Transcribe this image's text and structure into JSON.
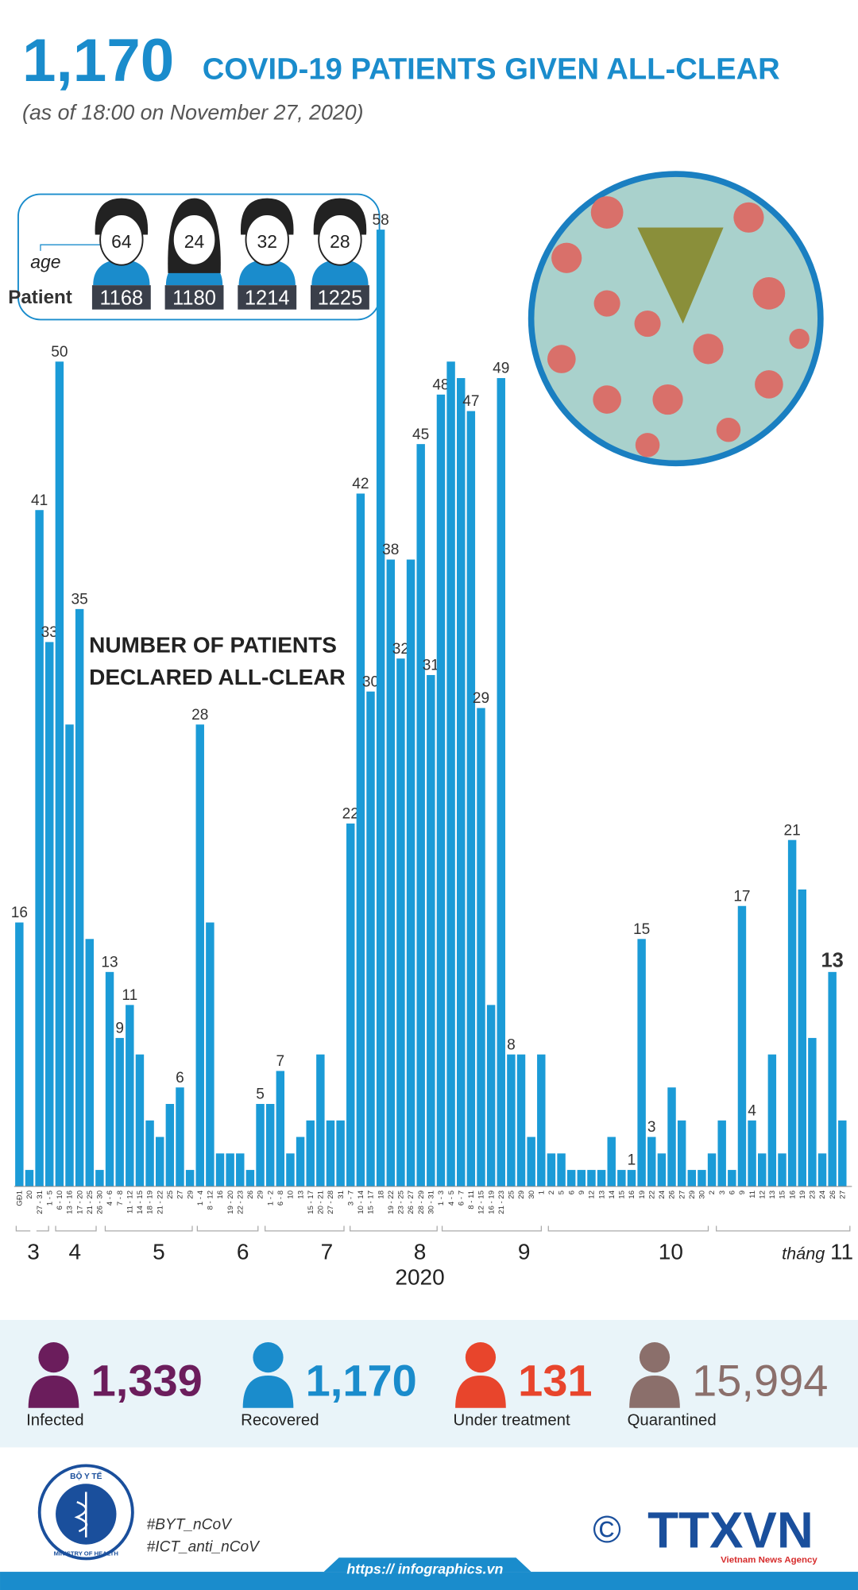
{
  "header": {
    "number": "1,170",
    "title": "COVID-19 PATIENTS GIVEN ALL-CLEAR",
    "subtitle": "(as of 18:00 on November 27, 2020)"
  },
  "patients": {
    "age_label": "age",
    "patient_label": "Patient",
    "items": [
      {
        "age": 64,
        "id": 1168
      },
      {
        "age": 24,
        "id": 1180
      },
      {
        "age": 32,
        "id": 1214
      },
      {
        "age": 28,
        "id": 1225
      }
    ]
  },
  "chart_data": {
    "type": "bar",
    "title": "NUMBER OF PATIENTS DECLARED ALL-CLEAR",
    "color": "#1b9bd7",
    "categories": [
      "GĐ1",
      "20",
      "27 - 31",
      "1 - 5",
      "6 - 10",
      "13 - 16",
      "17 - 20",
      "21 - 25",
      "26 - 30",
      "4 - 6",
      "7 - 8",
      "11 - 12",
      "14 - 15",
      "18 - 19",
      "21 - 22",
      "25",
      "27",
      "29",
      "1 - 4",
      "8 - 12",
      "16",
      "19 - 20",
      "22 - 23",
      "26",
      "29",
      "1 - 2",
      "6 - 8",
      "10",
      "13",
      "15 - 17",
      "20 - 21",
      "27 - 28",
      "31",
      "3 - 7",
      "10 - 14",
      "15 - 17",
      "18",
      "19 - 22",
      "23 - 25",
      "26 - 27",
      "28 - 29",
      "30 - 31",
      "1 - 3",
      "4 - 5",
      "6 - 7",
      "8 - 11",
      "12 - 15",
      "16 - 19",
      "21 - 23",
      "25",
      "29",
      "30",
      "1",
      "2",
      "5",
      "6",
      "9",
      "12",
      "13",
      "14",
      "15",
      "16",
      "19",
      "22",
      "24",
      "26",
      "27",
      "29",
      "30",
      "2",
      "3",
      "6",
      "9",
      "11",
      "12",
      "13",
      "15",
      "16",
      "19",
      "23",
      "24",
      "26",
      "27"
    ],
    "values": [
      16,
      1,
      41,
      33,
      50,
      28,
      35,
      15,
      1,
      13,
      9,
      11,
      8,
      4,
      3,
      5,
      6,
      1,
      28,
      16,
      2,
      2,
      2,
      1,
      5,
      5,
      7,
      2,
      3,
      4,
      8,
      4,
      4,
      22,
      42,
      30,
      58,
      38,
      32,
      38,
      45,
      31,
      48,
      50,
      49,
      47,
      29,
      11,
      49,
      8,
      8,
      3,
      8,
      2,
      2,
      1,
      1,
      1,
      1,
      3,
      1,
      1,
      15,
      3,
      2,
      6,
      4,
      1,
      1,
      2,
      4,
      1,
      17,
      4,
      2,
      8,
      2,
      21,
      18,
      9,
      2,
      13,
      4
    ],
    "value_labels": [
      "16",
      null,
      "41",
      "33",
      "50",
      null,
      "35",
      null,
      null,
      "13",
      "9",
      "11",
      null,
      null,
      null,
      null,
      "6",
      null,
      "28",
      null,
      null,
      null,
      null,
      null,
      "5",
      null,
      "7",
      null,
      null,
      null,
      null,
      null,
      null,
      "22",
      "42",
      "30",
      "58",
      "38",
      "32",
      null,
      "45",
      "31",
      "48",
      null,
      null,
      "47",
      "29",
      null,
      "49",
      "8",
      null,
      null,
      null,
      null,
      null,
      null,
      null,
      null,
      null,
      null,
      null,
      "1",
      "15",
      "3",
      null,
      null,
      null,
      null,
      null,
      null,
      null,
      null,
      "17",
      "4",
      null,
      null,
      null,
      "21",
      null,
      null,
      null,
      "13",
      null
    ],
    "months": [
      "3",
      "4",
      "5",
      "6",
      "7",
      "8",
      "9",
      "10",
      "11"
    ],
    "month_prefix": "tháng",
    "year": "2020"
  },
  "stats": [
    {
      "value": "1,339",
      "label": "Infected",
      "color": "#6b1d5c"
    },
    {
      "value": "1,170",
      "label": "Recovered",
      "color": "#1a8ccc"
    },
    {
      "value": "131",
      "label": "Under treatment",
      "color": "#e8452c"
    },
    {
      "value": "15,994",
      "label": "Quarantined",
      "color": "#8b6f6b"
    }
  ],
  "footer": {
    "ministry_top": "BỘ Y TẾ",
    "ministry_bottom": "MINISTRY OF HEALTH",
    "hashtags": [
      "#BYT_nCoV",
      "#ICT_anti_nCoV"
    ],
    "copyright": "©",
    "agency": "TTXVN",
    "agency_sub": "Vietnam News Agency",
    "url": "https:// infographics.vn"
  }
}
